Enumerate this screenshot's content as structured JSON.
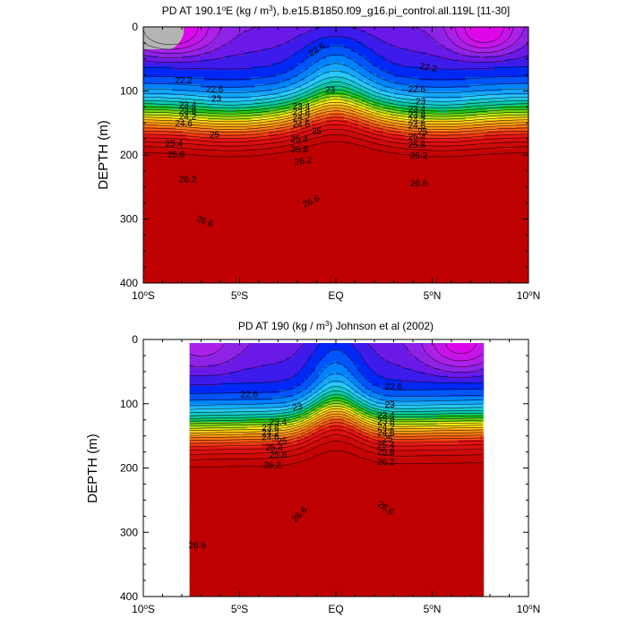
{
  "chart_data": [
    {
      "type": "contour",
      "title_prefix": "PD AT 190.1",
      "title_sup": "o",
      "title_mid": "E (kg / m",
      "title_sup2": "3",
      "title_suffix": "), b.e15.B1850.f09_g16.pi_control.all.119L [11-30]",
      "ylabel": "DEPTH (m)",
      "xlim": [
        -10,
        10
      ],
      "ylim": [
        400,
        0
      ],
      "y_ticks": [
        "0",
        "100",
        "200",
        "300",
        "400"
      ],
      "x_ticks": [
        {
          "val": "10",
          "deg": "o",
          "hem": "S"
        },
        {
          "val": "5",
          "deg": "o",
          "hem": "S"
        },
        {
          "val": "EQ",
          "deg": "",
          "hem": ""
        },
        {
          "val": "5",
          "deg": "o",
          "hem": "N"
        },
        {
          "val": "10",
          "deg": "o",
          "hem": "N"
        }
      ],
      "levels": [
        21.4,
        21.6,
        21.8,
        22.0,
        22.2,
        22.4,
        22.6,
        22.8,
        23.0,
        23.2,
        23.4,
        23.6,
        23.8,
        24.0,
        24.2,
        24.4,
        24.6,
        24.8,
        25.0,
        25.2,
        25.4,
        25.6,
        25.8,
        26.0,
        26.2,
        26.4,
        26.6,
        26.8
      ],
      "contour_labels": [
        {
          "text": "22.6",
          "x": -1.0,
          "y": 35,
          "rot": -35
        },
        {
          "text": "22.2",
          "x": 4.8,
          "y": 63,
          "rot": 10
        },
        {
          "text": "22.2",
          "x": -7.9,
          "y": 83,
          "rot": 0
        },
        {
          "text": "22.6",
          "x": -6.3,
          "y": 97,
          "rot": 0
        },
        {
          "text": "23",
          "x": -6.2,
          "y": 112,
          "rot": 0
        },
        {
          "text": "23",
          "x": -0.3,
          "y": 98,
          "rot": 0
        },
        {
          "text": "22.6",
          "x": 4.2,
          "y": 97,
          "rot": 0
        },
        {
          "text": "23",
          "x": 4.4,
          "y": 116,
          "rot": 0
        },
        {
          "text": "23.4",
          "x": -7.7,
          "y": 122,
          "rot": 0
        },
        {
          "text": "23.8",
          "x": -7.7,
          "y": 131,
          "rot": 0
        },
        {
          "text": "24.2",
          "x": -7.7,
          "y": 140,
          "rot": 0
        },
        {
          "text": "24.6",
          "x": -7.9,
          "y": 150,
          "rot": 0
        },
        {
          "text": "23.4",
          "x": -1.8,
          "y": 124,
          "rot": 0
        },
        {
          "text": "23.8",
          "x": -1.8,
          "y": 133,
          "rot": 0
        },
        {
          "text": "24.2",
          "x": -1.8,
          "y": 141,
          "rot": 0
        },
        {
          "text": "24.6",
          "x": -1.8,
          "y": 152,
          "rot": 0
        },
        {
          "text": "23.4",
          "x": 4.2,
          "y": 128,
          "rot": 0
        },
        {
          "text": "23.8",
          "x": 4.2,
          "y": 137,
          "rot": 0
        },
        {
          "text": "24.2",
          "x": 4.2,
          "y": 145,
          "rot": 0
        },
        {
          "text": "24.6",
          "x": 4.2,
          "y": 154,
          "rot": 0
        },
        {
          "text": "25",
          "x": 4.5,
          "y": 163,
          "rot": 0
        },
        {
          "text": "25",
          "x": -6.3,
          "y": 168,
          "rot": 0
        },
        {
          "text": "25",
          "x": -1.0,
          "y": 162,
          "rot": 0
        },
        {
          "text": "25.4",
          "x": -8.4,
          "y": 182,
          "rot": 0
        },
        {
          "text": "25.4",
          "x": -1.9,
          "y": 175,
          "rot": 0
        },
        {
          "text": "25.4",
          "x": 4.2,
          "y": 171,
          "rot": 0
        },
        {
          "text": "25.8",
          "x": -8.3,
          "y": 199,
          "rot": 0
        },
        {
          "text": "25.8",
          "x": -1.9,
          "y": 191,
          "rot": 0
        },
        {
          "text": "25.8",
          "x": 4.2,
          "y": 184,
          "rot": 0
        },
        {
          "text": "26.2",
          "x": -1.7,
          "y": 209,
          "rot": -8
        },
        {
          "text": "26.2",
          "x": 4.3,
          "y": 201,
          "rot": 0
        },
        {
          "text": "26.2",
          "x": -7.7,
          "y": 238,
          "rot": 0
        },
        {
          "text": "26.6",
          "x": -1.3,
          "y": 272,
          "rot": -25
        },
        {
          "text": "26.6",
          "x": 4.3,
          "y": 244,
          "rot": 0
        },
        {
          "text": "26.6",
          "x": -6.8,
          "y": 303,
          "rot": 20
        }
      ]
    },
    {
      "type": "contour",
      "title": "PD AT 190 (kg / m",
      "title_sup": "3",
      "title_suffix": ") Johnson et al (2002)",
      "ylabel": "DEPTH (m)",
      "xlim": [
        -10,
        10
      ],
      "ylim": [
        400,
        0
      ],
      "data_x_range": [
        -7.6,
        7.6
      ],
      "y_ticks": [
        "0",
        "100",
        "200",
        "300",
        "400"
      ],
      "x_ticks": [
        {
          "val": "10",
          "deg": "o",
          "hem": "S"
        },
        {
          "val": "5",
          "deg": "o",
          "hem": "S"
        },
        {
          "val": "EQ",
          "deg": "",
          "hem": ""
        },
        {
          "val": "5",
          "deg": "o",
          "hem": "N"
        },
        {
          "val": "10",
          "deg": "o",
          "hem": "N"
        }
      ],
      "levels": [
        21.4,
        21.6,
        21.8,
        22.0,
        22.2,
        22.4,
        22.6,
        22.8,
        23.0,
        23.2,
        23.4,
        23.6,
        23.8,
        24.0,
        24.2,
        24.4,
        24.6,
        24.8,
        25.0,
        25.2,
        25.4,
        25.6,
        25.8,
        26.0,
        26.2,
        26.4,
        26.6,
        26.8
      ],
      "contour_labels": [
        {
          "text": "22.6",
          "x": -4.5,
          "y": 85,
          "rot": 0
        },
        {
          "text": "22.6",
          "x": 3.0,
          "y": 73,
          "rot": 0
        },
        {
          "text": "23",
          "x": -2.0,
          "y": 105,
          "rot": -12
        },
        {
          "text": "23",
          "x": 2.8,
          "y": 101,
          "rot": 0
        },
        {
          "text": "23.4",
          "x": -3.0,
          "y": 128,
          "rot": 0
        },
        {
          "text": "23.8",
          "x": -3.4,
          "y": 137,
          "rot": 0
        },
        {
          "text": "24.2",
          "x": -3.4,
          "y": 145,
          "rot": 0
        },
        {
          "text": "24.6",
          "x": -3.4,
          "y": 152,
          "rot": 0
        },
        {
          "text": "25",
          "x": -2.8,
          "y": 158,
          "rot": 0
        },
        {
          "text": "23.4",
          "x": 2.6,
          "y": 118,
          "rot": 0
        },
        {
          "text": "23.8",
          "x": 2.6,
          "y": 127,
          "rot": 0
        },
        {
          "text": "24.2",
          "x": 2.6,
          "y": 136,
          "rot": 0
        },
        {
          "text": "24.6",
          "x": 2.6,
          "y": 145,
          "rot": 0
        },
        {
          "text": "25",
          "x": 2.7,
          "y": 154,
          "rot": 0
        },
        {
          "text": "25.4",
          "x": -3.2,
          "y": 168,
          "rot": 0
        },
        {
          "text": "25.8",
          "x": -3.0,
          "y": 179,
          "rot": 0
        },
        {
          "text": "25.4",
          "x": 2.6,
          "y": 164,
          "rot": 0
        },
        {
          "text": "25.8",
          "x": 2.6,
          "y": 175,
          "rot": 0
        },
        {
          "text": "26.2",
          "x": -3.3,
          "y": 195,
          "rot": 0
        },
        {
          "text": "26.2",
          "x": 2.6,
          "y": 190,
          "rot": 0
        },
        {
          "text": "26.6",
          "x": -1.9,
          "y": 272,
          "rot": -45
        },
        {
          "text": "26.6",
          "x": 2.6,
          "y": 262,
          "rot": 35
        },
        {
          "text": "26.6",
          "x": -7.2,
          "y": 320,
          "rot": 0
        }
      ]
    }
  ]
}
